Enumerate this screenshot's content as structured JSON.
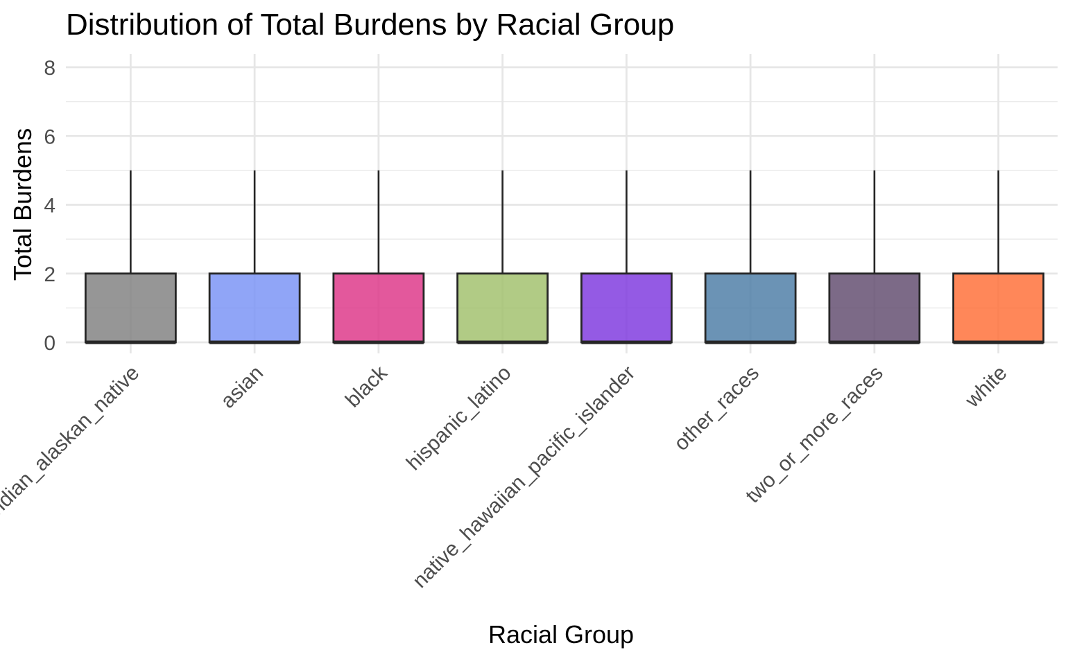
{
  "chart_data": {
    "type": "box",
    "title": "Distribution of Total Burdens by Racial Group",
    "xlabel": "Racial Group",
    "ylabel": "Total Burdens",
    "ylim": [
      -0.4,
      8.4
    ],
    "yticks": [
      0,
      2,
      4,
      6,
      8
    ],
    "grid": true,
    "legend": "none",
    "categories": [
      "american_indian_alaskan_native",
      "asian",
      "black",
      "hispanic_latino",
      "native_hawaiian_pacific_islander",
      "other_races",
      "two_or_more_races",
      "white"
    ],
    "series": [
      {
        "values": [
          {
            "min": 0,
            "q1": 0,
            "median": 0,
            "q3": 2,
            "max": 5,
            "color": "#7f7f7f"
          },
          {
            "min": 0,
            "q1": 0,
            "median": 0,
            "q3": 2,
            "max": 5,
            "color": "#7891f5"
          },
          {
            "min": 0,
            "q1": 0,
            "median": 0,
            "q3": 2,
            "max": 5,
            "color": "#dd3386"
          },
          {
            "min": 0,
            "q1": 0,
            "median": 0,
            "q3": 2,
            "max": 5,
            "color": "#a0c06a"
          },
          {
            "min": 0,
            "q1": 0,
            "median": 0,
            "q3": 2,
            "max": 5,
            "color": "#7c36de"
          },
          {
            "min": 0,
            "q1": 0,
            "median": 0,
            "q3": 2,
            "max": 5,
            "color": "#4b7ba5"
          },
          {
            "min": 0,
            "q1": 0,
            "median": 0,
            "q3": 2,
            "max": 5,
            "color": "#5f496d"
          },
          {
            "min": 0,
            "q1": 0,
            "median": 0,
            "q3": 2,
            "max": 5,
            "color": "#ff6c34"
          }
        ]
      }
    ]
  }
}
